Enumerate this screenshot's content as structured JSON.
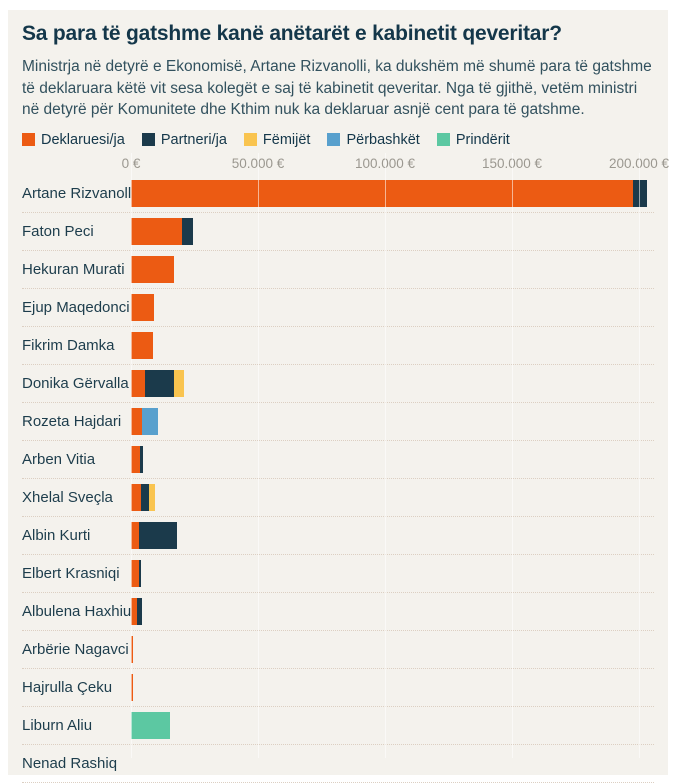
{
  "page": {
    "title": "Sa para të gatshme kanë anëtarët e kabinetit qeveritar?",
    "description": "Ministrja në detyrë e Ekonomisë, Artane Rizvanolli, ka dukshëm më shumë para të gatshme të deklaruara këtë vit sesa kolegët e saj të kabinetit qeveritar. Nga të gjithë, vetëm ministri në detyrë për Komunitete dhe Kthim nuk ka deklaruar asnjë cent para të gatshme."
  },
  "colors": {
    "background": "#f4f2ed",
    "title_text": "#14374a",
    "body_text": "#32515e",
    "axis_text": "#9b9890",
    "separator": "#dccfc2"
  },
  "chart_data": {
    "type": "bar",
    "orientation": "horizontal",
    "stacked": true,
    "unit": "€",
    "grid": true,
    "legend_position": "top",
    "x_axis": {
      "ticks": [
        "0 €",
        "50.000 €",
        "100.000 €",
        "150.000 €",
        "200.000 €"
      ],
      "tick_values": [
        0,
        50000,
        100000,
        150000,
        200000
      ],
      "range": [
        0,
        208000
      ]
    },
    "legend": [
      {
        "key": "deklaruesi",
        "label": "Deklaruesi/ja",
        "color": "#ec5b13"
      },
      {
        "key": "partneri",
        "label": "Partneri/ja",
        "color": "#1b3a4b"
      },
      {
        "key": "femijet",
        "label": "Fëmijët",
        "color": "#f9c44f"
      },
      {
        "key": "perbashket",
        "label": "Përbashkët",
        "color": "#58a0cd"
      },
      {
        "key": "prinderit",
        "label": "Prindërit",
        "color": "#5cc8a2"
      }
    ],
    "rows": [
      {
        "name": "Artane Rizvanolli",
        "segments": [
          {
            "series": "Deklaruesi/ja",
            "value": 197500
          },
          {
            "series": "Partneri/ja",
            "value": 5500
          }
        ]
      },
      {
        "name": "Faton Peci",
        "segments": [
          {
            "series": "Deklaruesi/ja",
            "value": 20000
          },
          {
            "series": "Partneri/ja",
            "value": 4500
          }
        ]
      },
      {
        "name": "Hekuran Murati",
        "segments": [
          {
            "series": "Deklaruesi/ja",
            "value": 17000
          }
        ]
      },
      {
        "name": "Ejup Maqedonci",
        "segments": [
          {
            "series": "Deklaruesi/ja",
            "value": 9200
          }
        ]
      },
      {
        "name": "Fikrim Damka",
        "segments": [
          {
            "series": "Deklaruesi/ja",
            "value": 8500
          }
        ]
      },
      {
        "name": "Donika Gërvalla",
        "segments": [
          {
            "series": "Deklaruesi/ja",
            "value": 5500
          },
          {
            "series": "Partneri/ja",
            "value": 11500
          },
          {
            "series": "Fëmijët",
            "value": 4000
          }
        ]
      },
      {
        "name": "Rozeta Hajdari",
        "segments": [
          {
            "series": "Deklaruesi/ja",
            "value": 4500
          },
          {
            "series": "Përbashkët",
            "value": 6200
          }
        ]
      },
      {
        "name": "Arben Vitia",
        "segments": [
          {
            "series": "Deklaruesi/ja",
            "value": 3500
          },
          {
            "series": "Partneri/ja",
            "value": 1200
          }
        ]
      },
      {
        "name": "Xhelal Sveçla",
        "segments": [
          {
            "series": "Deklaruesi/ja",
            "value": 3800
          },
          {
            "series": "Partneri/ja",
            "value": 3300
          },
          {
            "series": "Fëmijët",
            "value": 2400
          }
        ]
      },
      {
        "name": "Albin Kurti",
        "segments": [
          {
            "series": "Deklaruesi/ja",
            "value": 3000
          },
          {
            "series": "Partneri/ja",
            "value": 15200
          }
        ]
      },
      {
        "name": "Elbert Krasniqi",
        "segments": [
          {
            "series": "Deklaruesi/ja",
            "value": 3000
          },
          {
            "series": "Partneri/ja",
            "value": 1100
          }
        ]
      },
      {
        "name": "Albulena Haxhiu",
        "segments": [
          {
            "series": "Deklaruesi/ja",
            "value": 2200
          },
          {
            "series": "Partneri/ja",
            "value": 2000
          }
        ]
      },
      {
        "name": "Arbërie Nagavci",
        "segments": [
          {
            "series": "Deklaruesi/ja",
            "value": 600
          }
        ]
      },
      {
        "name": "Hajrulla Çeku",
        "segments": [
          {
            "series": "Deklaruesi/ja",
            "value": 600
          }
        ]
      },
      {
        "name": "Liburn Aliu",
        "segments": [
          {
            "series": "Prindërit",
            "value": 15400
          }
        ]
      },
      {
        "name": "Nenad Rashiq",
        "segments": []
      }
    ]
  }
}
